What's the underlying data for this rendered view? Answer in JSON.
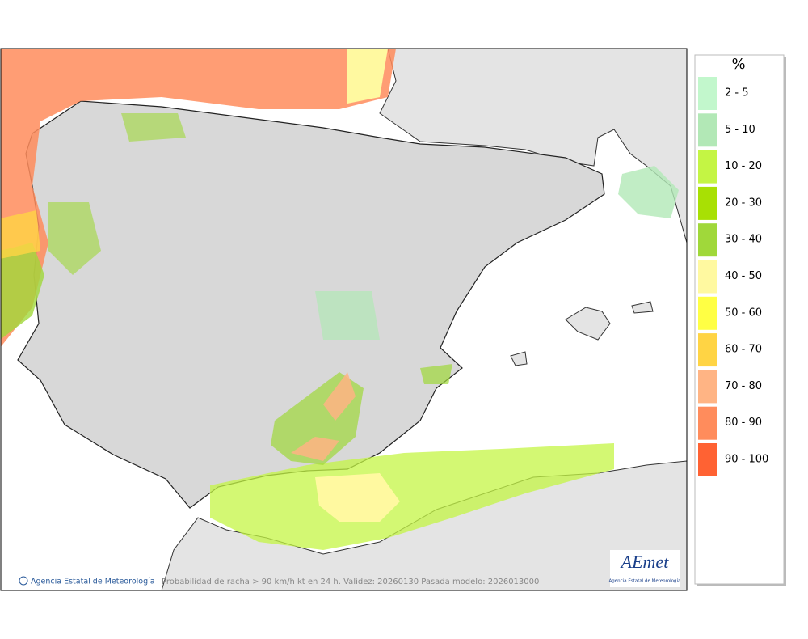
{
  "map": {
    "footer_credit": "Agencia Estatal de Meteorología",
    "caption": "Probabilidad de racha > 90 km/h kt en 24 h. Validez: 20260130 Pasada modelo: 2026013000",
    "logo": {
      "text": "AEmet",
      "subtitle": "Agencia Estatal de Meteorología"
    }
  },
  "legend": {
    "title": "%",
    "items": [
      {
        "label": "2 - 5",
        "color": "#c2f7cc"
      },
      {
        "label": "5 - 10",
        "color": "#b2e8b6"
      },
      {
        "label": "10 - 20",
        "color": "#c4f544"
      },
      {
        "label": "20 - 30",
        "color": "#a8e004"
      },
      {
        "label": "30 - 40",
        "color": "#a0d83a"
      },
      {
        "label": "40 - 50",
        "color": "#fff9a0"
      },
      {
        "label": "50 - 60",
        "color": "#ffff44"
      },
      {
        "label": "60 - 70",
        "color": "#ffd444"
      },
      {
        "label": "70 - 80",
        "color": "#ffb484"
      },
      {
        "label": "80 - 90",
        "color": "#ff8c5c"
      },
      {
        "label": "90 - 100",
        "color": "#ff6233"
      }
    ]
  }
}
